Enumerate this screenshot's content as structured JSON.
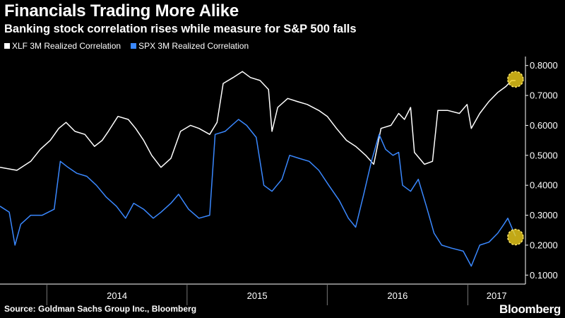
{
  "title": "Financials Trading More Alike",
  "subtitle": "Banking stock correlation rises while measure for S&P 500 falls",
  "source": "Source: Goldman Sachs Group Inc., Bloomberg",
  "brand": "Bloomberg",
  "colors": {
    "background": "#000000",
    "xlf": "#ffffff",
    "spx": "#3a88ff",
    "highlight": "#f2d21b"
  },
  "chart_data": {
    "type": "line",
    "title": "Financials Trading More Alike",
    "subtitle": "Banking stock correlation rises while measure for S&P 500 falls",
    "xlabel": "",
    "ylabel": "",
    "x_ticks": [
      "2014",
      "2015",
      "2016",
      "2017"
    ],
    "y_ticks": [
      "0.1000",
      "0.2000",
      "0.3000",
      "0.4000",
      "0.5000",
      "0.6000",
      "0.7000",
      "0.8000"
    ],
    "ylim": [
      0.07,
      0.83
    ],
    "xlim": [
      "2013-09-01",
      "2017-05-31"
    ],
    "grid": false,
    "legend_position": "top-left",
    "series": [
      {
        "name": "XLF 3M Realized Correlation",
        "color": "#ffffff",
        "points": [
          [
            "2013-09-01",
            0.46
          ],
          [
            "2013-10-15",
            0.45
          ],
          [
            "2013-11-20",
            0.48
          ],
          [
            "2013-12-15",
            0.52
          ],
          [
            "2014-01-10",
            0.55
          ],
          [
            "2014-02-01",
            0.59
          ],
          [
            "2014-02-20",
            0.61
          ],
          [
            "2014-03-15",
            0.58
          ],
          [
            "2014-04-10",
            0.57
          ],
          [
            "2014-05-05",
            0.53
          ],
          [
            "2014-05-25",
            0.55
          ],
          [
            "2014-06-10",
            0.58
          ],
          [
            "2014-07-05",
            0.63
          ],
          [
            "2014-08-01",
            0.62
          ],
          [
            "2014-08-20",
            0.59
          ],
          [
            "2014-09-10",
            0.55
          ],
          [
            "2014-10-01",
            0.5
          ],
          [
            "2014-10-25",
            0.46
          ],
          [
            "2014-11-20",
            0.49
          ],
          [
            "2014-12-15",
            0.58
          ],
          [
            "2015-01-10",
            0.6
          ],
          [
            "2015-02-01",
            0.59
          ],
          [
            "2015-03-01",
            0.57
          ],
          [
            "2015-03-20",
            0.61
          ],
          [
            "2015-04-05",
            0.74
          ],
          [
            "2015-05-01",
            0.76
          ],
          [
            "2015-05-25",
            0.78
          ],
          [
            "2015-06-15",
            0.76
          ],
          [
            "2015-07-10",
            0.75
          ],
          [
            "2015-08-01",
            0.72
          ],
          [
            "2015-08-10",
            0.58
          ],
          [
            "2015-08-25",
            0.66
          ],
          [
            "2015-09-20",
            0.69
          ],
          [
            "2015-10-15",
            0.68
          ],
          [
            "2015-11-10",
            0.67
          ],
          [
            "2015-12-10",
            0.65
          ],
          [
            "2016-01-01",
            0.63
          ],
          [
            "2016-01-25",
            0.59
          ],
          [
            "2016-02-20",
            0.55
          ],
          [
            "2016-03-15",
            0.53
          ],
          [
            "2016-04-10",
            0.5
          ],
          [
            "2016-05-01",
            0.47
          ],
          [
            "2016-05-20",
            0.59
          ],
          [
            "2016-06-15",
            0.6
          ],
          [
            "2016-07-05",
            0.64
          ],
          [
            "2016-07-20",
            0.62
          ],
          [
            "2016-08-05",
            0.66
          ],
          [
            "2016-08-15",
            0.51
          ],
          [
            "2016-09-10",
            0.47
          ],
          [
            "2016-10-01",
            0.48
          ],
          [
            "2016-10-15",
            0.65
          ],
          [
            "2016-11-10",
            0.65
          ],
          [
            "2016-12-10",
            0.64
          ],
          [
            "2016-12-30",
            0.67
          ],
          [
            "2017-01-10",
            0.59
          ],
          [
            "2017-02-01",
            0.64
          ],
          [
            "2017-02-25",
            0.68
          ],
          [
            "2017-03-20",
            0.71
          ],
          [
            "2017-04-10",
            0.73
          ],
          [
            "2017-04-25",
            0.75
          ],
          [
            "2017-05-05",
            0.75
          ]
        ]
      },
      {
        "name": "SPX 3M Realized Correlation",
        "color": "#3a88ff",
        "points": [
          [
            "2013-09-01",
            0.33
          ],
          [
            "2013-09-25",
            0.31
          ],
          [
            "2013-10-10",
            0.2
          ],
          [
            "2013-10-25",
            0.27
          ],
          [
            "2013-11-20",
            0.3
          ],
          [
            "2013-12-20",
            0.3
          ],
          [
            "2014-01-20",
            0.32
          ],
          [
            "2014-02-05",
            0.48
          ],
          [
            "2014-02-25",
            0.46
          ],
          [
            "2014-03-20",
            0.44
          ],
          [
            "2014-04-15",
            0.43
          ],
          [
            "2014-05-10",
            0.4
          ],
          [
            "2014-06-05",
            0.36
          ],
          [
            "2014-07-01",
            0.33
          ],
          [
            "2014-07-25",
            0.29
          ],
          [
            "2014-08-15",
            0.34
          ],
          [
            "2014-09-10",
            0.32
          ],
          [
            "2014-10-05",
            0.29
          ],
          [
            "2014-10-25",
            0.31
          ],
          [
            "2014-11-20",
            0.34
          ],
          [
            "2014-12-10",
            0.37
          ],
          [
            "2015-01-05",
            0.32
          ],
          [
            "2015-02-01",
            0.29
          ],
          [
            "2015-03-01",
            0.3
          ],
          [
            "2015-03-15",
            0.57
          ],
          [
            "2015-04-10",
            0.58
          ],
          [
            "2015-05-15",
            0.62
          ],
          [
            "2015-06-05",
            0.6
          ],
          [
            "2015-06-30",
            0.56
          ],
          [
            "2015-07-20",
            0.4
          ],
          [
            "2015-08-10",
            0.38
          ],
          [
            "2015-09-05",
            0.42
          ],
          [
            "2015-09-25",
            0.5
          ],
          [
            "2015-10-20",
            0.49
          ],
          [
            "2015-11-15",
            0.48
          ],
          [
            "2015-12-10",
            0.45
          ],
          [
            "2016-01-05",
            0.4
          ],
          [
            "2016-02-01",
            0.35
          ],
          [
            "2016-02-25",
            0.29
          ],
          [
            "2016-03-15",
            0.26
          ],
          [
            "2016-04-05",
            0.37
          ],
          [
            "2016-04-25",
            0.48
          ],
          [
            "2016-05-15",
            0.57
          ],
          [
            "2016-06-01",
            0.52
          ],
          [
            "2016-06-20",
            0.5
          ],
          [
            "2016-07-05",
            0.51
          ],
          [
            "2016-07-15",
            0.4
          ],
          [
            "2016-08-05",
            0.38
          ],
          [
            "2016-08-25",
            0.42
          ],
          [
            "2016-09-15",
            0.33
          ],
          [
            "2016-10-05",
            0.24
          ],
          [
            "2016-10-25",
            0.2
          ],
          [
            "2016-11-20",
            0.19
          ],
          [
            "2016-12-20",
            0.18
          ],
          [
            "2017-01-10",
            0.13
          ],
          [
            "2017-02-01",
            0.2
          ],
          [
            "2017-02-25",
            0.21
          ],
          [
            "2017-03-20",
            0.24
          ],
          [
            "2017-04-05",
            0.27
          ],
          [
            "2017-04-15",
            0.29
          ],
          [
            "2017-05-05",
            0.23
          ]
        ]
      }
    ],
    "annotations": [
      {
        "type": "highlight-circle",
        "series": "XLF 3M Realized Correlation",
        "x": "2017-05-05",
        "y": 0.754
      },
      {
        "type": "highlight-circle",
        "series": "SPX 3M Realized Correlation",
        "x": "2017-05-05",
        "y": 0.227
      }
    ]
  }
}
